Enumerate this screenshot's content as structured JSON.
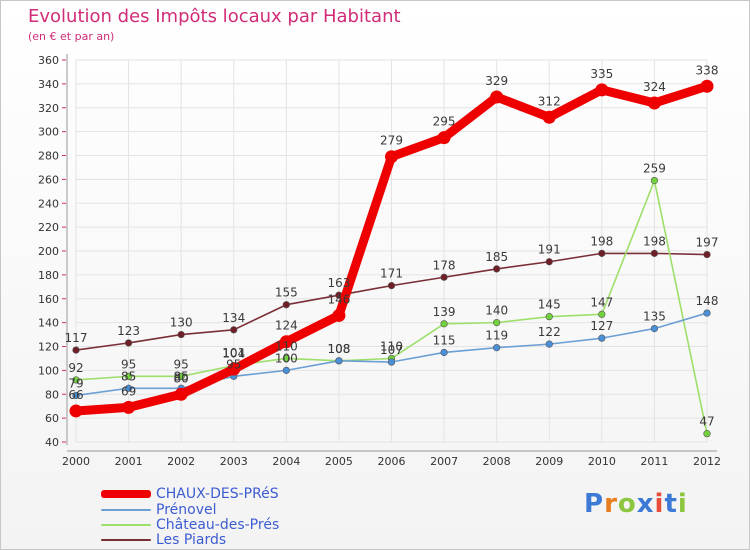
{
  "header": {
    "title": "Evolution des Impôts locaux par Habitant",
    "subtitle": "(en € et par an)"
  },
  "logo": {
    "text": "Proxiti"
  },
  "colors": {
    "title": "#d02c78",
    "legend_text": "#3d5cd2",
    "axis": "#999999",
    "grid": "#e3e3e3",
    "logo_letters": [
      "#3d7ad6",
      "#e87d1e",
      "#8cc63f",
      "#3d7ad6",
      "#e84d3c",
      "#3d7ad6",
      "#8cc63f"
    ]
  },
  "chart_data": {
    "type": "line",
    "title": "Evolution des Impôts locaux par Habitant",
    "subtitle": "(en € et par an)",
    "xlabel": "",
    "ylabel": "",
    "ylim": [
      40,
      360
    ],
    "ytick_step": 20,
    "grid": true,
    "legend_position": "bottom-left",
    "categories": [
      "2000",
      "2001",
      "2002",
      "2003",
      "2004",
      "2005",
      "2006",
      "2007",
      "2008",
      "2009",
      "2010",
      "2011",
      "2012"
    ],
    "series": [
      {
        "name": "CHAUX-DES-PRéS",
        "color": "#ee0000",
        "marker": "#ee0000",
        "thick": true,
        "values": [
          66,
          69,
          80,
          101,
          124,
          146,
          279,
          295,
          329,
          312,
          335,
          324,
          338
        ]
      },
      {
        "name": "Prénovel",
        "color": "#6c9fd4",
        "marker": "#4a90d9",
        "thick": false,
        "values": [
          79,
          85,
          85,
          95,
          100,
          108,
          107,
          115,
          119,
          122,
          127,
          135,
          148
        ]
      },
      {
        "name": "Château-des-Prés",
        "color": "#9edf6c",
        "marker": "#73d13d",
        "thick": false,
        "values": [
          92,
          95,
          95,
          104,
          110,
          108,
          110,
          139,
          140,
          145,
          147,
          259,
          47
        ]
      },
      {
        "name": "Les Piards",
        "color": "#7a2e36",
        "marker": "#6e1f27",
        "thick": false,
        "values": [
          117,
          123,
          130,
          134,
          155,
          163,
          171,
          178,
          185,
          191,
          198,
          198,
          197
        ]
      }
    ],
    "data_labels": [
      [
        "66",
        "69",
        "80",
        "101",
        "124",
        "146",
        "279",
        "295",
        "329",
        "312",
        "335",
        "324",
        "338"
      ],
      [
        "79",
        "85",
        "85",
        "95",
        "100",
        "108",
        "107",
        "115",
        "119",
        "122",
        "127",
        "135",
        "148"
      ],
      [
        "92",
        "95",
        "95",
        "104",
        "110",
        "108",
        "110",
        "139",
        "140",
        "145",
        "147",
        "259",
        "47"
      ],
      [
        "117",
        "123",
        "130",
        "134",
        "155",
        "163",
        "171",
        "178",
        "185",
        "191",
        "198",
        "198",
        "197"
      ]
    ]
  }
}
